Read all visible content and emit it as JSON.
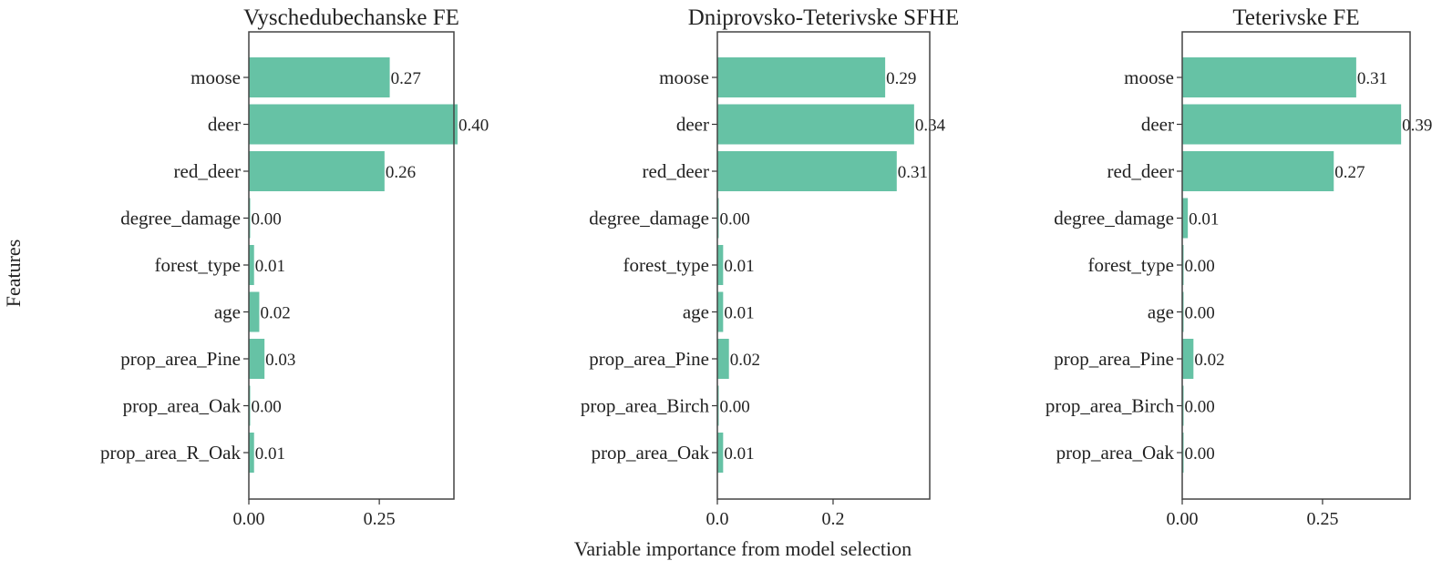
{
  "chart_data": {
    "type": "bar",
    "orientation": "horizontal",
    "xlabel": "Variable importance from model selection",
    "ylabel": "Features",
    "bar_color": "#66c2a5",
    "panels": [
      {
        "title": "Vyschedubechanske FE",
        "categories": [
          "moose",
          "deer",
          "red_deer",
          "degree_damage",
          "forest_type",
          "age",
          "prop_area_Pine",
          "prop_area_Oak",
          "prop_area_R_Oak"
        ],
        "values": [
          0.27,
          0.4,
          0.26,
          0.0,
          0.01,
          0.02,
          0.03,
          0.0,
          0.01
        ],
        "labels": [
          "0.27",
          "0.40",
          "0.26",
          "0.00",
          "0.01",
          "0.02",
          "0.03",
          "0.00",
          "0.01"
        ],
        "xlim": [
          0,
          0.393
        ],
        "xticks": [
          0,
          0.25
        ],
        "xtick_labels": [
          "0.00",
          "0.25"
        ]
      },
      {
        "title": "Dniprovsko-Teterivske SFHE",
        "categories": [
          "moose",
          "deer",
          "red_deer",
          "degree_damage",
          "forest_type",
          "age",
          "prop_area_Pine",
          "prop_area_Birch",
          "prop_area_Oak"
        ],
        "values": [
          0.29,
          0.34,
          0.31,
          0.0,
          0.01,
          0.01,
          0.02,
          0.0,
          0.01
        ],
        "labels": [
          "0.29",
          "0.34",
          "0.31",
          "0.00",
          "0.01",
          "0.01",
          "0.02",
          "0.00",
          "0.01"
        ],
        "xlim": [
          0,
          0.367
        ],
        "xticks": [
          0,
          0.2
        ],
        "xtick_labels": [
          "0.0",
          "0.2"
        ]
      },
      {
        "title": "Teterivske FE",
        "categories": [
          "moose",
          "deer",
          "red_deer",
          "degree_damage",
          "forest_type",
          "age",
          "prop_area_Pine",
          "prop_area_Birch",
          "prop_area_Oak"
        ],
        "values": [
          0.31,
          0.39,
          0.27,
          0.01,
          0.0,
          0.0,
          0.02,
          0.0,
          0.0
        ],
        "labels": [
          "0.31",
          "0.39",
          "0.27",
          "0.01",
          "0.00",
          "0.00",
          "0.02",
          "0.00",
          "0.00"
        ],
        "xlim": [
          0,
          0.406
        ],
        "xticks": [
          0,
          0.25
        ],
        "xtick_labels": [
          "0.00",
          "0.25"
        ]
      }
    ]
  }
}
